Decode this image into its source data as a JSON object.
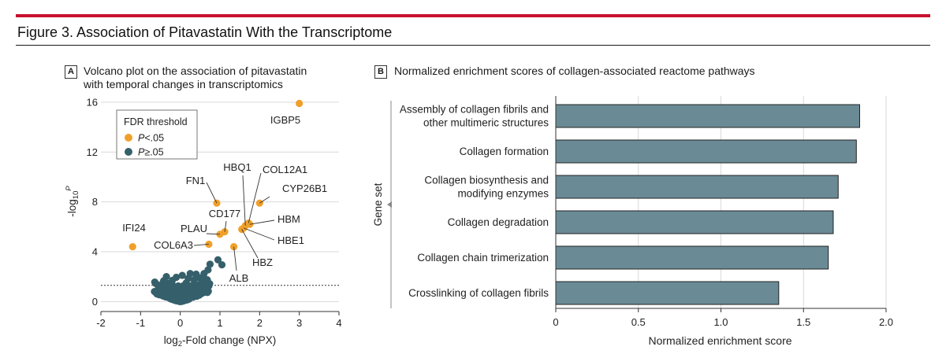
{
  "figure_title": "Figure 3. Association of Pitavastatin With the Transcriptome",
  "colors": {
    "accent_rule": "#c8102e",
    "significant": "#f0a02a",
    "nonsignificant": "#35606b",
    "bar_fill": "#6a8b95",
    "grid": "#d9d9d9"
  },
  "panel_a": {
    "letter": "A",
    "title_line1": "Volcano plot on the association of pitavastatin",
    "title_line2": "with temporal changes in transcriptomics",
    "legend_title": "FDR threshold",
    "legend_sig_prefix": "P",
    "legend_sig_suffix": "<.05",
    "legend_nonsig_prefix": "P",
    "legend_nonsig_suffix": "≥.05",
    "ylabel_prefix": "-log",
    "ylabel_sub": "10",
    "ylabel_sup": "P",
    "xlabel_prefix": "log",
    "xlabel_sub": "2",
    "xlabel_suffix": "-Fold change (NPX)"
  },
  "panel_b": {
    "letter": "B",
    "title": "Normalized enrichment scores of collagen-associated reactome pathways"
  },
  "chart_data": [
    {
      "type": "scatter",
      "xlim": [
        -2,
        4
      ],
      "ylim": [
        -0.8,
        16.5
      ],
      "xticks": [
        -2,
        -1,
        0,
        1,
        2,
        3,
        4
      ],
      "yticks": [
        0,
        4,
        8,
        12,
        16
      ],
      "grid": true,
      "legend_position": "top-left",
      "threshold_y": 1.3,
      "labeled_points": [
        {
          "label": "IGBP5",
          "x": 3.0,
          "y": 15.9
        },
        {
          "label": "CYP26B1",
          "x": 2.0,
          "y": 7.9
        },
        {
          "label": "FN1",
          "x": 0.92,
          "y": 7.9
        },
        {
          "label": "COL12A1",
          "x": 1.72,
          "y": 6.3
        },
        {
          "label": "HBQ1",
          "x": 1.64,
          "y": 6.1
        },
        {
          "label": "HBM",
          "x": 1.75,
          "y": 6.2
        },
        {
          "label": "HBE1",
          "x": 1.6,
          "y": 5.9
        },
        {
          "label": "HBZ",
          "x": 1.55,
          "y": 5.8
        },
        {
          "label": "CD177",
          "x": 1.12,
          "y": 5.6
        },
        {
          "label": "PLAU",
          "x": 1.0,
          "y": 5.4
        },
        {
          "label": "COL6A3",
          "x": 0.72,
          "y": 4.6
        },
        {
          "label": "ALB",
          "x": 1.35,
          "y": 4.4
        },
        {
          "label": "IFI24",
          "x": -1.2,
          "y": 4.4
        }
      ],
      "nonsignificant_points": [
        [
          0.75,
          3.0
        ],
        [
          0.95,
          3.35
        ],
        [
          1.05,
          2.95
        ],
        [
          0.7,
          2.55
        ],
        [
          0.6,
          2.25
        ],
        [
          0.45,
          1.95
        ],
        [
          -0.35,
          2.0
        ],
        [
          -0.55,
          1.3
        ],
        [
          0.35,
          1.75
        ],
        [
          0.15,
          1.5
        ],
        [
          -0.2,
          1.7
        ],
        [
          0.55,
          1.6
        ],
        [
          -0.45,
          1.15
        ],
        [
          0.3,
          1.3
        ],
        [
          0.62,
          1.05
        ],
        [
          -0.65,
          0.8
        ],
        [
          0.05,
          2.1
        ],
        [
          0.2,
          1.85
        ],
        [
          -0.1,
          1.95
        ],
        [
          0.4,
          2.2
        ],
        [
          0.5,
          1.4
        ],
        [
          0.58,
          2.0
        ],
        [
          0.68,
          1.75
        ],
        [
          0.72,
          1.25
        ],
        [
          -0.3,
          1.45
        ],
        [
          0.25,
          2.25
        ],
        [
          -0.05,
          1.25
        ],
        [
          0.1,
          1.05
        ]
      ]
    },
    {
      "type": "bar",
      "orientation": "horizontal",
      "ylabel": "Gene set",
      "xlabel": "Normalized enrichment score",
      "xlim": [
        0,
        2.0
      ],
      "xticks": [
        0,
        0.5,
        1.0,
        1.5,
        2.0
      ],
      "xtick_labels": [
        "0",
        "0.5",
        "1.0",
        "1.5",
        "2.0"
      ],
      "grid": true,
      "categories": [
        [
          "Assembly of collagen fibrils and",
          "other multimeric structures"
        ],
        [
          "Collagen formation"
        ],
        [
          "Collagen biosynthesis and",
          "modifying enzymes"
        ],
        [
          "Collagen degradation"
        ],
        [
          "Collagen chain trimerization"
        ],
        [
          "Crosslinking of collagen fibrils"
        ]
      ],
      "values": [
        1.84,
        1.82,
        1.71,
        1.68,
        1.65,
        1.35
      ]
    }
  ]
}
